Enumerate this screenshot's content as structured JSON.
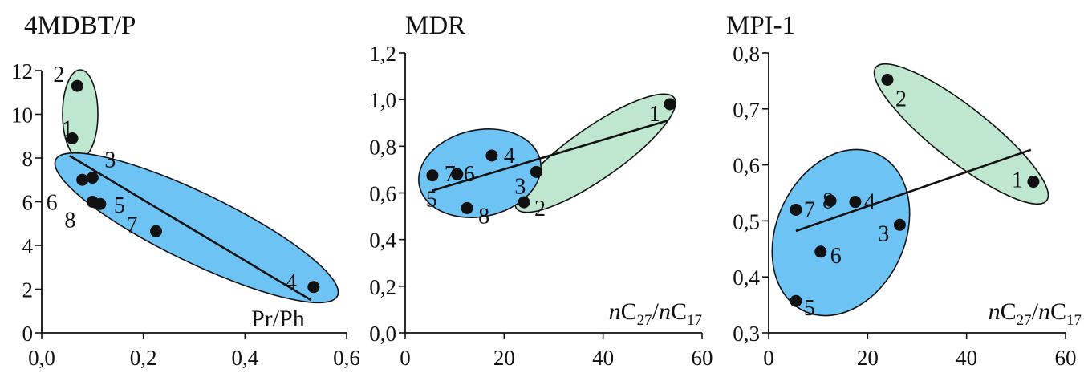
{
  "chart_data": [
    {
      "type": "scatter",
      "title": "4MDBT/P",
      "xlabel": "Pr/Ph",
      "ylabel": "",
      "xlim": [
        0.0,
        0.6
      ],
      "ylim": [
        0,
        12
      ],
      "x_ticks": [
        "0,0",
        "0,2",
        "0,4",
        "0,6"
      ],
      "y_ticks": [
        "0",
        "2",
        "4",
        "6",
        "8",
        "10",
        "12"
      ],
      "points": [
        {
          "label": "1",
          "x": 0.06,
          "y": 8.9
        },
        {
          "label": "2",
          "x": 0.07,
          "y": 11.3
        },
        {
          "label": "3",
          "x": 0.1,
          "y": 7.1
        },
        {
          "label": "4",
          "x": 0.535,
          "y": 2.1
        },
        {
          "label": "5",
          "x": 0.115,
          "y": 5.9
        },
        {
          "label": "6",
          "x": 0.08,
          "y": 7.0
        },
        {
          "label": "7",
          "x": 0.225,
          "y": 4.65
        },
        {
          "label": "8",
          "x": 0.1,
          "y": 6.0
        }
      ],
      "trendline": {
        "from": [
          0.055,
          8.1
        ],
        "to": [
          0.53,
          1.5
        ]
      },
      "groups": [
        {
          "color": "#bfe6cf",
          "members": [
            "1",
            "2"
          ]
        },
        {
          "color": "#6ec3f5",
          "members": [
            "3",
            "4",
            "5",
            "6",
            "7",
            "8"
          ]
        }
      ]
    },
    {
      "type": "scatter",
      "title": "MDR",
      "xlabel": "nC27/nC17",
      "ylabel": "",
      "xlim": [
        0,
        60
      ],
      "ylim": [
        0.0,
        1.2
      ],
      "x_ticks": [
        "0",
        "20",
        "40",
        "60"
      ],
      "y_ticks": [
        "0,0",
        "0,2",
        "0,4",
        "0,6",
        "0,8",
        "1,0",
        "1,2"
      ],
      "points": [
        {
          "label": "1",
          "x": 53.5,
          "y": 0.98
        },
        {
          "label": "2",
          "x": 24,
          "y": 0.56
        },
        {
          "label": "3",
          "x": 26.5,
          "y": 0.69
        },
        {
          "label": "4",
          "x": 17.5,
          "y": 0.76
        },
        {
          "label": "5",
          "x": 5.5,
          "y": 0.675
        },
        {
          "label": "6",
          "x": 10.5,
          "y": 0.68
        },
        {
          "label": "7",
          "x": 10.5,
          "y": 0.68
        },
        {
          "label": "8",
          "x": 12.5,
          "y": 0.535
        }
      ],
      "trendline": {
        "from": [
          5.5,
          0.61
        ],
        "to": [
          53,
          0.91
        ]
      },
      "groups": [
        {
          "color": "#bfe6cf",
          "members": [
            "1",
            "2",
            "3"
          ]
        },
        {
          "color": "#6ec3f5",
          "members": [
            "4",
            "5",
            "6",
            "7",
            "8"
          ]
        }
      ]
    },
    {
      "type": "scatter",
      "title": "MPI-1",
      "xlabel": "nC27/nC17",
      "ylabel": "",
      "xlim": [
        0,
        60
      ],
      "ylim": [
        0.3,
        0.8
      ],
      "x_ticks": [
        "0",
        "20",
        "40",
        "60"
      ],
      "y_ticks": [
        "0,3",
        "0,4",
        "0,5",
        "0,6",
        "0,7",
        "0,8"
      ],
      "points": [
        {
          "label": "1",
          "x": 53.5,
          "y": 0.57
        },
        {
          "label": "2",
          "x": 24,
          "y": 0.752
        },
        {
          "label": "3",
          "x": 26.5,
          "y": 0.493
        },
        {
          "label": "4",
          "x": 17.5,
          "y": 0.534
        },
        {
          "label": "5",
          "x": 5.5,
          "y": 0.357
        },
        {
          "label": "6",
          "x": 10.5,
          "y": 0.445
        },
        {
          "label": "7",
          "x": 5.5,
          "y": 0.52
        },
        {
          "label": "8",
          "x": 12.5,
          "y": 0.536
        }
      ],
      "trendline": {
        "from": [
          5.5,
          0.482
        ],
        "to": [
          53,
          0.627
        ]
      },
      "groups": [
        {
          "color": "#bfe6cf",
          "members": [
            "1",
            "2"
          ]
        },
        {
          "color": "#6ec3f5",
          "members": [
            "3",
            "4",
            "5",
            "6",
            "7",
            "8"
          ]
        }
      ]
    }
  ]
}
